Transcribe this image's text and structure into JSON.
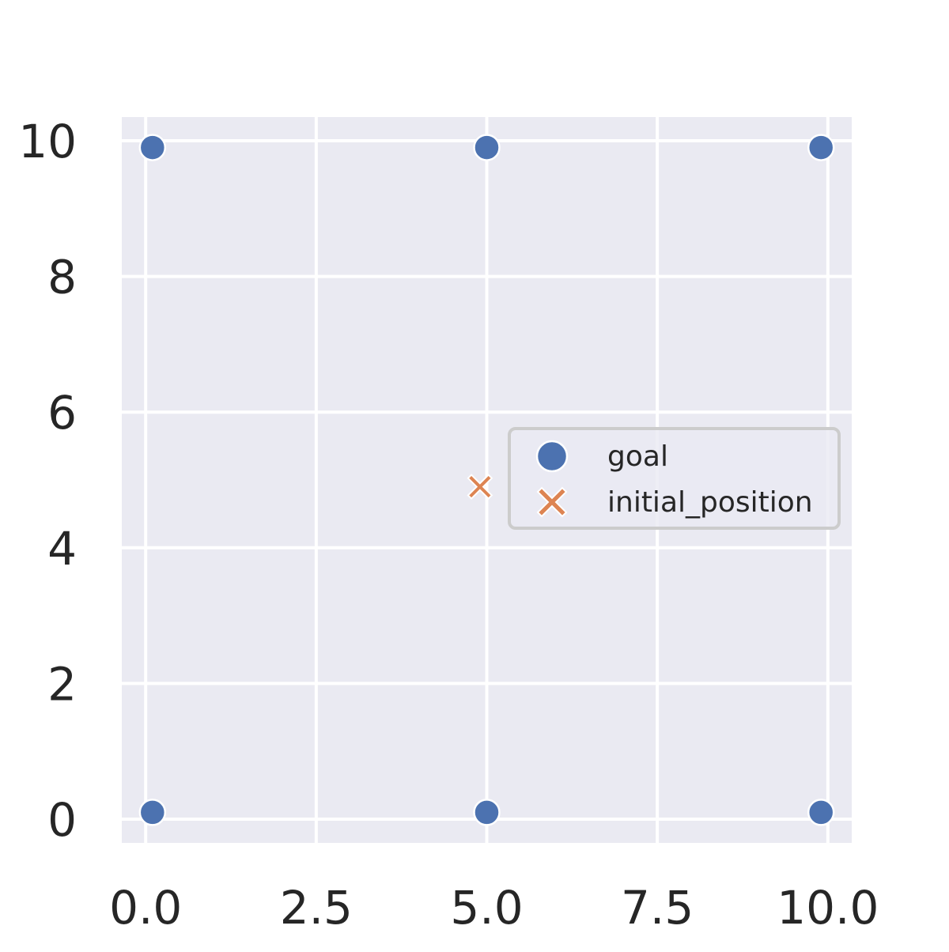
{
  "chart_data": {
    "type": "scatter",
    "title": "",
    "xlabel": "",
    "ylabel": "",
    "xlim": [
      -0.35,
      10.35
    ],
    "ylim": [
      -0.35,
      10.35
    ],
    "x_ticks": [
      0.0,
      2.5,
      5.0,
      7.5,
      10.0
    ],
    "x_tick_labels": [
      "0.0",
      "2.5",
      "5.0",
      "7.5",
      "10.0"
    ],
    "y_ticks": [
      0,
      2,
      4,
      6,
      8,
      10
    ],
    "y_tick_labels": [
      "0",
      "2",
      "4",
      "6",
      "8",
      "10"
    ],
    "grid": true,
    "legend_position": "center-right",
    "series": [
      {
        "name": "goal",
        "marker": "circle",
        "color": "#4c72b0",
        "points": [
          {
            "x": 0.1,
            "y": 0.1
          },
          {
            "x": 5.0,
            "y": 0.1
          },
          {
            "x": 9.9,
            "y": 0.1
          },
          {
            "x": 0.1,
            "y": 9.9
          },
          {
            "x": 5.0,
            "y": 9.9
          },
          {
            "x": 9.9,
            "y": 9.9
          }
        ]
      },
      {
        "name": "initial_position",
        "marker": "x",
        "color": "#dd8452",
        "points": [
          {
            "x": 4.9,
            "y": 4.9
          }
        ]
      }
    ]
  },
  "colors": {
    "plot_background": "#eaeaf2",
    "grid": "#ffffff",
    "text": "#262626",
    "legend_border": "#cccccc"
  }
}
